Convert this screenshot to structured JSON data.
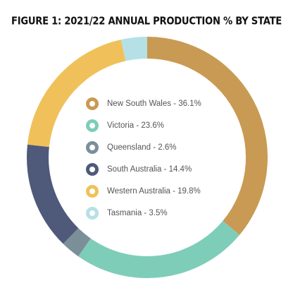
{
  "chart_data": {
    "type": "pie",
    "title": "FIGURE 1: 2021/22 ANNUAL PRODUCTION % BY STATE",
    "categories": [
      "New South Wales - 36.1%",
      "Victoria - 23.6%",
      "Queensland - 2.6%",
      "South Australia - 14.4%",
      "Western Australia - 19.8%",
      "Tasmania - 3.5%"
    ],
    "values": [
      36.1,
      23.6,
      2.6,
      14.4,
      19.8,
      3.5
    ],
    "colors": [
      "#c99a53",
      "#7ecdb9",
      "#7b8f99",
      "#4f5a7a",
      "#f0c15a",
      "#b5e0e6"
    ],
    "donut": true
  }
}
